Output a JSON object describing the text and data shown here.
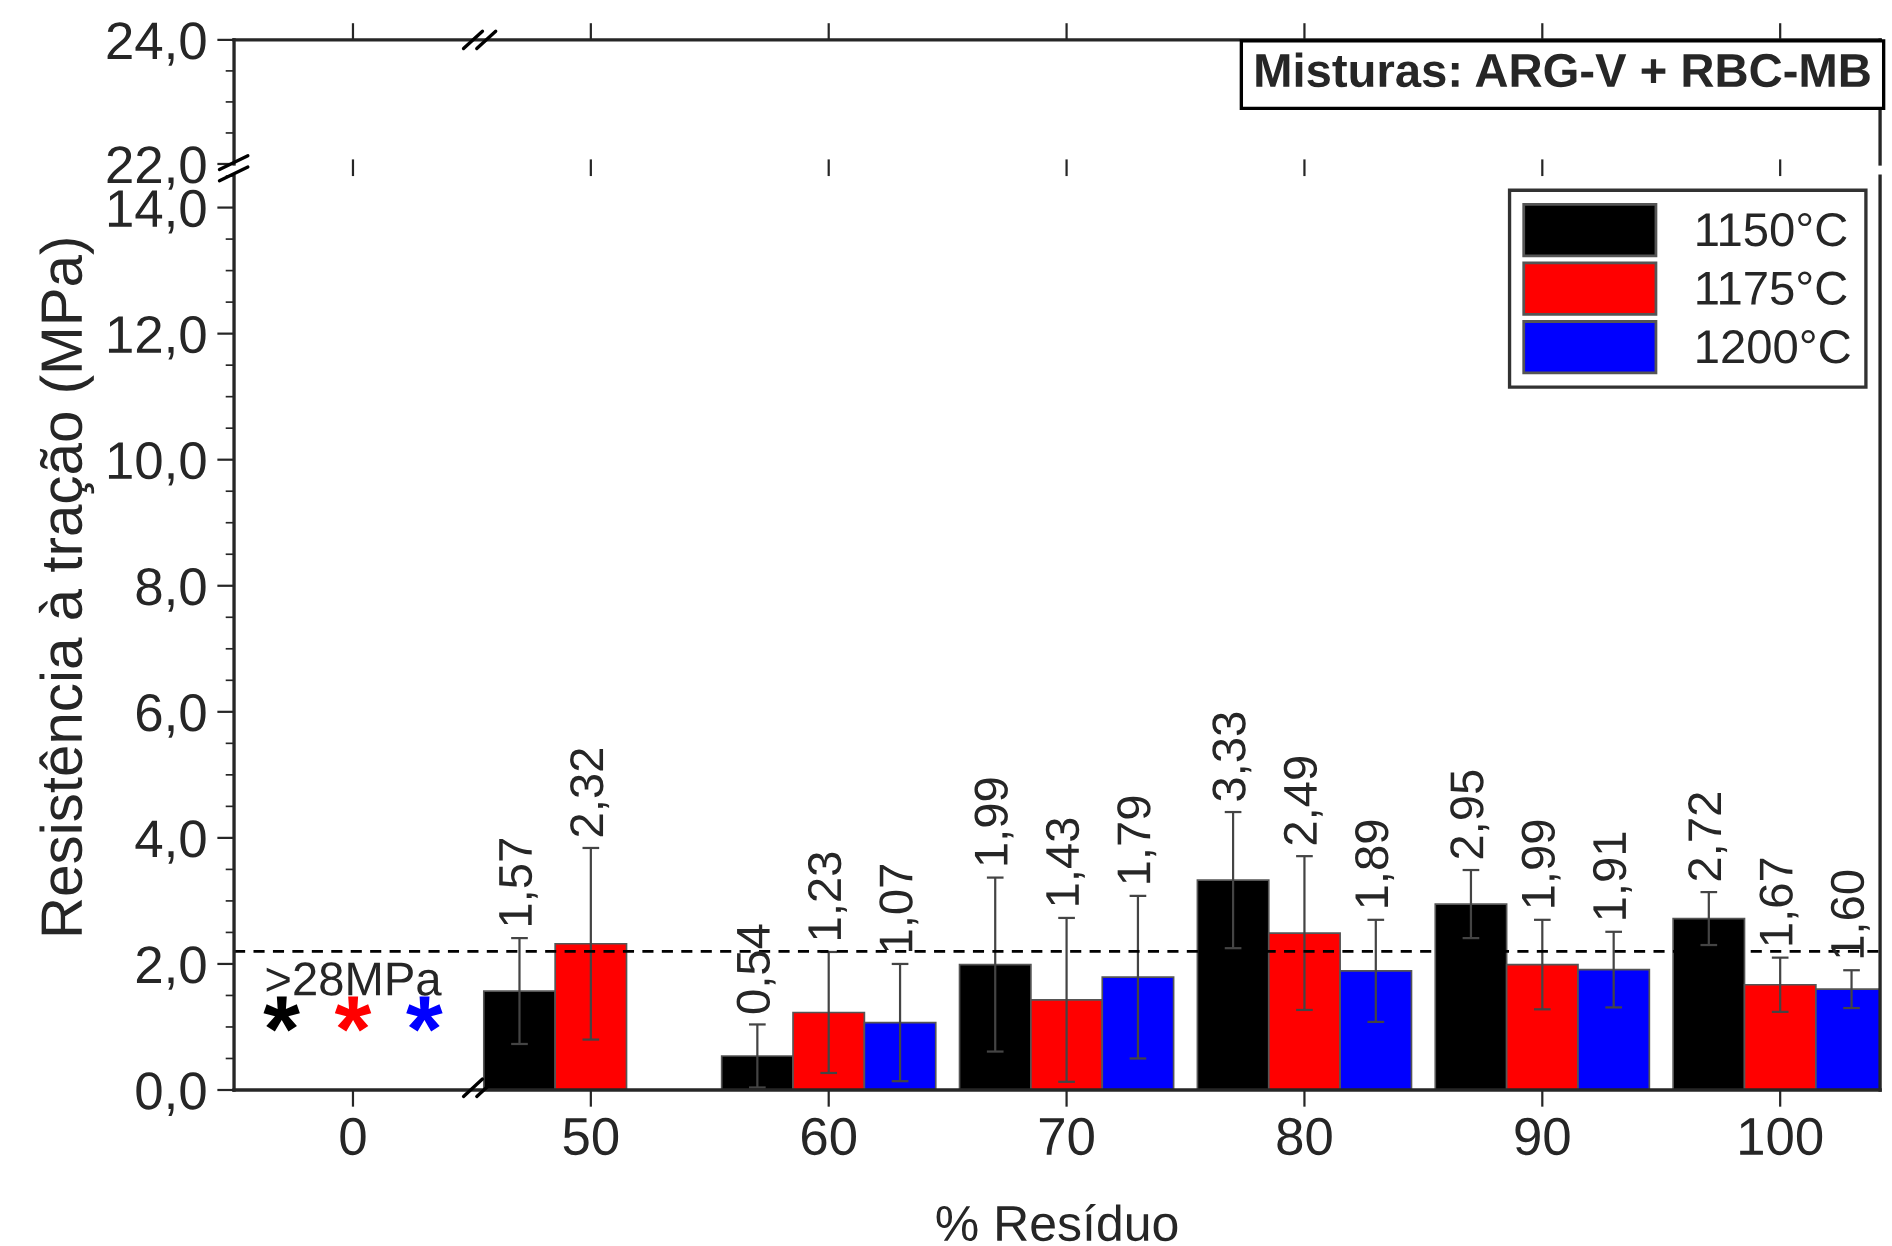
{
  "chart_data": [
    {
      "type": "bar",
      "categories": [
        "0",
        "50",
        "60",
        "70",
        "80",
        "90",
        "100"
      ],
      "values": [
        null,
        null,
        null,
        null,
        null,
        null,
        null
      ],
      "ylim": [
        22,
        24
      ],
      "yticks": [
        {
          "value": 22,
          "label": "22,0"
        },
        {
          "value": 24,
          "label": "24,0"
        }
      ],
      "tick_labels": "y",
      "grid": false,
      "legend": false,
      "annotations": [
        "Misturas: ARG-V + RBC-MB"
      ]
    },
    {
      "type": "bar",
      "categories": [
        "0",
        "50",
        "60",
        "70",
        "80",
        "90",
        "100"
      ],
      "xlabel": "% Resíduo",
      "ylabel": "Resistência à tração (MPa)",
      "ylim": [
        0,
        14.5
      ],
      "yticks": [
        {
          "value": 0,
          "label": "0,0"
        },
        {
          "value": 2,
          "label": "2,0"
        },
        {
          "value": 4,
          "label": "4,0"
        },
        {
          "value": 6,
          "label": "6,0"
        },
        {
          "value": 8,
          "label": "8,0"
        },
        {
          "value": 10,
          "label": "10,0"
        },
        {
          "value": 12,
          "label": "12,0"
        },
        {
          "value": 14,
          "label": "14,0"
        }
      ],
      "series": [
        {
          "name": "1150°C",
          "color": "#000000",
          "values": [
            null,
            1.57,
            0.54,
            1.99,
            3.33,
            2.95,
            2.72
          ],
          "errors": [
            null,
            0.84,
            0.5,
            1.38,
            1.08,
            0.54,
            0.42
          ],
          "value_labels": [
            null,
            "1,57",
            "0,54",
            "1,99",
            "3,33",
            "2,95",
            "2,72"
          ]
        },
        {
          "name": "1175°C",
          "color": "#ff0000",
          "values": [
            null,
            2.32,
            1.23,
            1.43,
            2.49,
            1.99,
            1.67
          ],
          "errors": [
            null,
            1.52,
            0.96,
            1.3,
            1.22,
            0.71,
            0.43
          ],
          "value_labels": [
            null,
            "2,32",
            "1,23",
            "1,43",
            "2,49",
            "1,99",
            "1,67"
          ]
        },
        {
          "name": "1200°C",
          "color": "#0000ff",
          "values": [
            null,
            null,
            1.07,
            1.79,
            1.89,
            1.91,
            1.6
          ],
          "errors": [
            null,
            null,
            0.93,
            1.29,
            0.81,
            0.6,
            0.3
          ],
          "value_labels": [
            null,
            null,
            "1,07",
            "1,79",
            "1,89",
            "1,91",
            "1,60"
          ]
        }
      ],
      "ref_lines": [
        {
          "axis": "y",
          "value": 2.2,
          "label": null,
          "line_style": "dashed",
          "color": "#000000"
        }
      ],
      "annotations": [
        ">28MPa",
        "*",
        "*",
        "*"
      ],
      "legend": "top right",
      "grid": false
    }
  ]
}
